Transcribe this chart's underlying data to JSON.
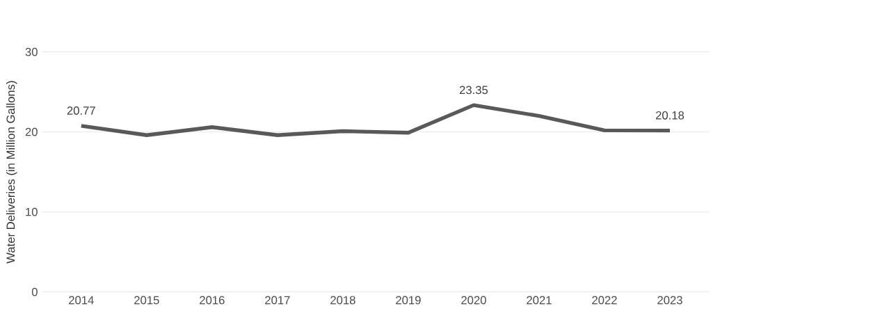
{
  "chart_data": {
    "type": "line",
    "ylabel": "Water Deliveries (in Million Gallons)",
    "categories": [
      "2014",
      "2015",
      "2016",
      "2017",
      "2018",
      "2019",
      "2020",
      "2021",
      "2022",
      "2023"
    ],
    "values": [
      20.77,
      19.6,
      20.6,
      19.6,
      20.1,
      19.9,
      23.35,
      22.0,
      20.2,
      20.18
    ],
    "value_labels": [
      "20.77",
      null,
      null,
      null,
      null,
      null,
      "23.35",
      null,
      null,
      "20.18"
    ],
    "color": "#595959",
    "ylim": [
      0,
      30
    ],
    "yticks": [
      0,
      10,
      20,
      30
    ],
    "grid": "y",
    "marker": "none",
    "line_style": "solid"
  }
}
